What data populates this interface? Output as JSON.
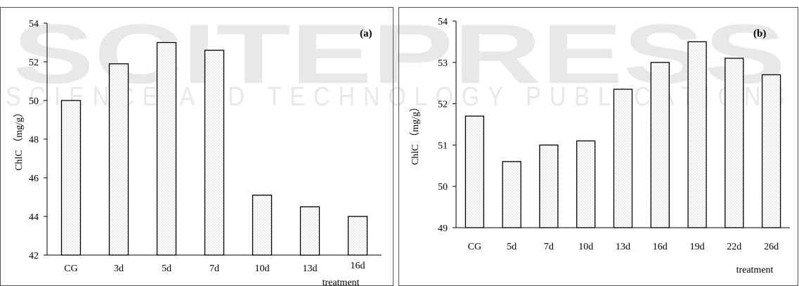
{
  "watermark": {
    "main": "SCITEPRESS",
    "sub": "SCIENCE AND TECHNOLOGY PUBLICATIONS"
  },
  "chart_data": [
    {
      "type": "bar",
      "panel_label": "(a)",
      "categories": [
        "CG",
        "3d",
        "5d",
        "7d",
        "10d",
        "13d",
        "16d"
      ],
      "values": [
        50.0,
        51.9,
        53.0,
        52.6,
        45.1,
        44.5,
        44.0
      ],
      "ylabel": "ChlC （mg/g）",
      "xlabel": "treatment",
      "ylim": [
        42,
        54
      ],
      "yticks": [
        42,
        44,
        46,
        48,
        50,
        52,
        54
      ],
      "grid": false
    },
    {
      "type": "bar",
      "panel_label": "(b)",
      "categories": [
        "CG",
        "5d",
        "7d",
        "10d",
        "13d",
        "16d",
        "19d",
        "22d",
        "26d"
      ],
      "values": [
        51.7,
        50.6,
        51.0,
        51.1,
        52.35,
        53.0,
        53.5,
        53.1,
        52.7
      ],
      "ylabel": "ChlC （mg/g）",
      "xlabel": "treatment",
      "ylim": [
        49,
        54
      ],
      "yticks": [
        49,
        50,
        51,
        52,
        53,
        54
      ],
      "grid": false
    }
  ]
}
